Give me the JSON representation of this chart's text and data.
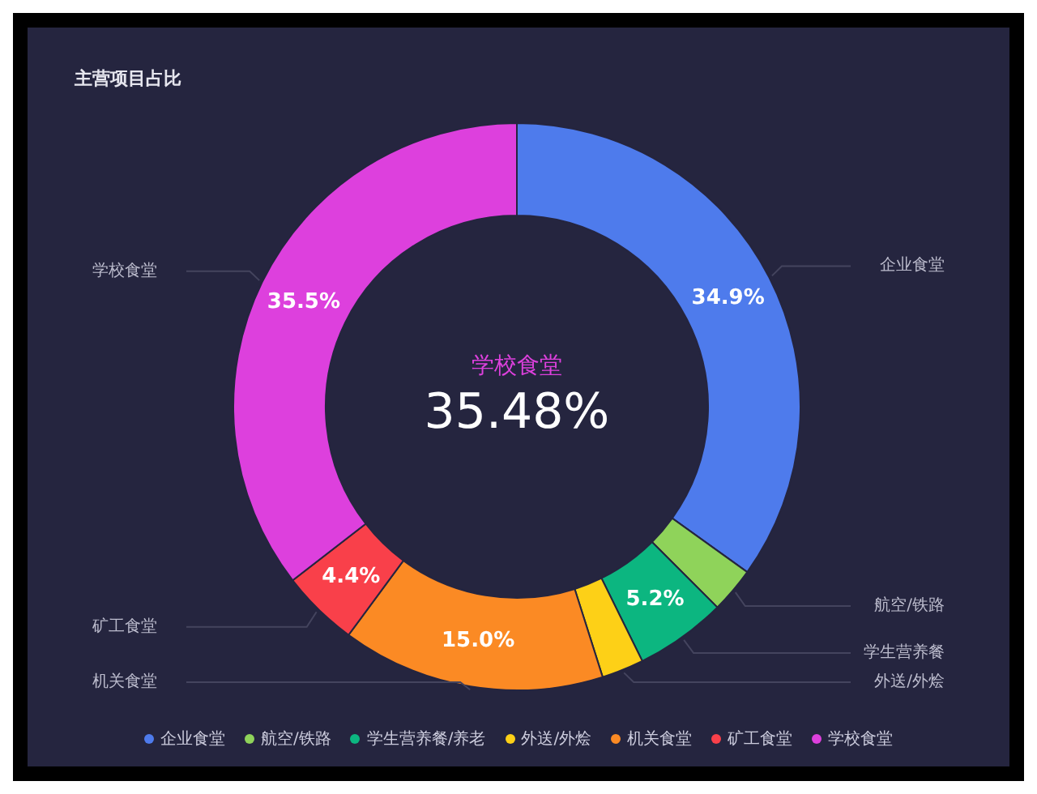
{
  "chart_data": {
    "type": "donut",
    "title": "主营项目占比",
    "categories": [
      "企业食堂",
      "航空/铁路",
      "学生营养餐/养老",
      "外送/外烩",
      "机关食堂",
      "矿工食堂",
      "学校食堂"
    ],
    "values": [
      34.9,
      2.6,
      5.2,
      2.4,
      15.0,
      4.4,
      35.48
    ],
    "colors": [
      "#4e7bec",
      "#8fd35a",
      "#0cb680",
      "#fdd017",
      "#fb8a24",
      "#f9404a",
      "#dd40dd"
    ],
    "value_labels": [
      "34.9%",
      null,
      "5.2%",
      null,
      "15.0%",
      "4.4%",
      "35.5%"
    ],
    "annotations": [
      "学校食堂",
      "35.48%",
      "企业食堂",
      "航空/铁路",
      "学生营养餐",
      "外送/外烩",
      "机关食堂",
      "矿工食堂",
      "学校食堂"
    ],
    "legend": "bottom"
  }
}
